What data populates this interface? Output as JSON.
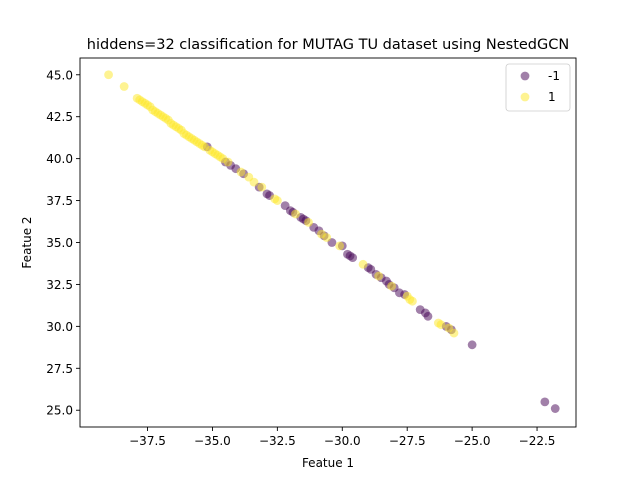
{
  "chart_data": {
    "type": "scatter",
    "title": "hiddens=32 classification for MUTAG TU dataset using NestedGCN",
    "xlabel": "Featue 1",
    "ylabel": "Featue 2",
    "xlim": [
      -40.1,
      -21.0
    ],
    "ylim": [
      24.0,
      46.0
    ],
    "xticks": [
      -37.5,
      -35.0,
      -32.5,
      -30.0,
      -27.5,
      -25.0,
      -22.5
    ],
    "xtick_labels": [
      "−37.5",
      "−35.0",
      "−32.5",
      "−30.0",
      "−27.5",
      "−25.0",
      "−22.5"
    ],
    "yticks": [
      25.0,
      27.5,
      30.0,
      32.5,
      35.0,
      37.5,
      40.0,
      42.5,
      45.0
    ],
    "ytick_labels": [
      "25.0",
      "27.5",
      "30.0",
      "32.5",
      "35.0",
      "37.5",
      "40.0",
      "42.5",
      "45.0"
    ],
    "grid": false,
    "legend_position": "top-right",
    "marker_alpha": 0.5,
    "series": [
      {
        "name": "-1",
        "color": "#440154",
        "points": [
          [
            -35.2,
            40.7
          ],
          [
            -34.5,
            39.8
          ],
          [
            -34.3,
            39.6
          ],
          [
            -34.1,
            39.4
          ],
          [
            -33.8,
            39.1
          ],
          [
            -33.2,
            38.3
          ],
          [
            -32.9,
            37.9
          ],
          [
            -32.8,
            37.8
          ],
          [
            -32.2,
            37.2
          ],
          [
            -32.0,
            36.9
          ],
          [
            -31.9,
            36.8
          ],
          [
            -31.6,
            36.5
          ],
          [
            -31.5,
            36.4
          ],
          [
            -31.4,
            36.3
          ],
          [
            -31.1,
            35.9
          ],
          [
            -30.9,
            35.7
          ],
          [
            -30.7,
            35.4
          ],
          [
            -30.4,
            35.0
          ],
          [
            -30.0,
            34.8
          ],
          [
            -29.8,
            34.3
          ],
          [
            -29.7,
            34.2
          ],
          [
            -29.6,
            34.1
          ],
          [
            -29.0,
            33.5
          ],
          [
            -28.9,
            33.4
          ],
          [
            -28.7,
            33.1
          ],
          [
            -28.5,
            32.9
          ],
          [
            -28.3,
            32.7
          ],
          [
            -28.2,
            32.5
          ],
          [
            -28.0,
            32.3
          ],
          [
            -27.8,
            32.0
          ],
          [
            -27.6,
            31.9
          ],
          [
            -27.0,
            31.0
          ],
          [
            -26.8,
            30.8
          ],
          [
            -26.7,
            30.6
          ],
          [
            -26.0,
            30.0
          ],
          [
            -25.8,
            29.8
          ],
          [
            -25.0,
            28.9
          ],
          [
            -22.2,
            25.5
          ],
          [
            -21.8,
            25.1
          ]
        ]
      },
      {
        "name": "1",
        "color": "#fde725",
        "points": [
          [
            -39.0,
            45.0
          ],
          [
            -38.4,
            44.3
          ],
          [
            -37.9,
            43.6
          ],
          [
            -37.8,
            43.5
          ],
          [
            -37.7,
            43.4
          ],
          [
            -37.6,
            43.3
          ],
          [
            -37.5,
            43.2
          ],
          [
            -37.4,
            43.1
          ],
          [
            -37.3,
            42.9
          ],
          [
            -37.2,
            42.8
          ],
          [
            -37.1,
            42.7
          ],
          [
            -37.0,
            42.6
          ],
          [
            -36.9,
            42.5
          ],
          [
            -36.8,
            42.4
          ],
          [
            -36.7,
            42.3
          ],
          [
            -36.6,
            42.1
          ],
          [
            -36.5,
            42.0
          ],
          [
            -36.4,
            41.9
          ],
          [
            -36.3,
            41.8
          ],
          [
            -36.2,
            41.7
          ],
          [
            -36.1,
            41.5
          ],
          [
            -36.0,
            41.4
          ],
          [
            -35.9,
            41.3
          ],
          [
            -35.8,
            41.2
          ],
          [
            -35.7,
            41.1
          ],
          [
            -35.6,
            41.0
          ],
          [
            -35.5,
            40.9
          ],
          [
            -35.4,
            40.8
          ],
          [
            -35.3,
            40.7
          ],
          [
            -35.1,
            40.5
          ],
          [
            -35.0,
            40.4
          ],
          [
            -34.9,
            40.3
          ],
          [
            -34.8,
            40.2
          ],
          [
            -34.7,
            40.1
          ],
          [
            -34.6,
            40.0
          ],
          [
            -34.4,
            39.8
          ],
          [
            -33.9,
            39.2
          ],
          [
            -33.6,
            38.9
          ],
          [
            -33.4,
            38.6
          ],
          [
            -33.1,
            38.3
          ],
          [
            -32.6,
            37.6
          ],
          [
            -32.5,
            37.5
          ],
          [
            -31.8,
            36.7
          ],
          [
            -31.3,
            36.2
          ],
          [
            -30.8,
            35.5
          ],
          [
            -30.6,
            35.3
          ],
          [
            -30.1,
            34.8
          ],
          [
            -29.2,
            33.7
          ],
          [
            -28.6,
            33.0
          ],
          [
            -28.1,
            32.4
          ],
          [
            -27.5,
            31.8
          ],
          [
            -27.4,
            31.6
          ],
          [
            -27.3,
            31.5
          ],
          [
            -26.3,
            30.2
          ],
          [
            -26.2,
            30.1
          ],
          [
            -25.9,
            29.9
          ],
          [
            -25.7,
            29.6
          ]
        ]
      }
    ]
  }
}
